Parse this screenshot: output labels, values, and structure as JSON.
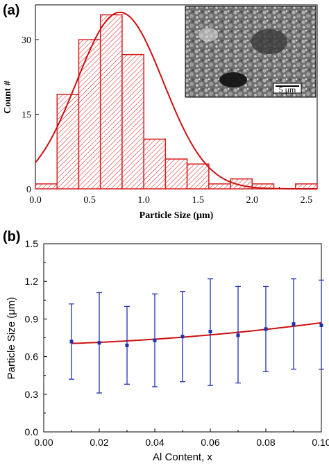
{
  "chart_data": [
    {
      "panel": "(a)",
      "type": "bar",
      "xlabel": "Particle Size (μm)",
      "ylabel": "Count #",
      "xlim": [
        0,
        2.6
      ],
      "ylim": [
        0,
        37
      ],
      "xticks": [
        "0.0",
        "0.5",
        "1.0",
        "1.5",
        "2.0",
        "2.5"
      ],
      "yticks": [
        "0",
        "15",
        "30"
      ],
      "bin_width": 0.2,
      "bins": [
        {
          "x0": 0.0,
          "x1": 0.2,
          "count": 1
        },
        {
          "x0": 0.2,
          "x1": 0.4,
          "count": 19
        },
        {
          "x0": 0.4,
          "x1": 0.6,
          "count": 30
        },
        {
          "x0": 0.6,
          "x1": 0.8,
          "count": 35
        },
        {
          "x0": 0.8,
          "x1": 1.0,
          "count": 27
        },
        {
          "x0": 1.0,
          "x1": 1.2,
          "count": 10
        },
        {
          "x0": 1.2,
          "x1": 1.4,
          "count": 6
        },
        {
          "x0": 1.4,
          "x1": 1.6,
          "count": 5
        },
        {
          "x0": 1.6,
          "x1": 1.8,
          "count": 1
        },
        {
          "x0": 1.8,
          "x1": 2.0,
          "count": 2
        },
        {
          "x0": 2.0,
          "x1": 2.2,
          "count": 1
        },
        {
          "x0": 2.2,
          "x1": 2.4,
          "count": 0
        },
        {
          "x0": 2.4,
          "x1": 2.6,
          "count": 1
        }
      ],
      "fit": {
        "type": "gaussian",
        "center": 0.78,
        "sigma": 0.4,
        "amplitude": 35.5
      },
      "inset": {
        "kind": "SEM micrograph",
        "scale_bar": "5 μm"
      },
      "bar_color": "#d62020",
      "fit_color": "#cc1010"
    },
    {
      "panel": "(b)",
      "type": "scatter",
      "xlabel": "Al Content, x",
      "ylabel": "Particle Size (μm)",
      "xlim": [
        0.0,
        0.1
      ],
      "ylim": [
        0.0,
        1.5
      ],
      "xticks": [
        "0.00",
        "0.02",
        "0.04",
        "0.06",
        "0.08",
        "0.10"
      ],
      "yticks": [
        "0.0",
        "0.3",
        "0.6",
        "0.9",
        "1.2",
        "1.5"
      ],
      "points": [
        {
          "x": 0.01,
          "y": 0.72,
          "err_low": 0.42,
          "err_high": 1.02
        },
        {
          "x": 0.02,
          "y": 0.71,
          "err_low": 0.31,
          "err_high": 1.11
        },
        {
          "x": 0.03,
          "y": 0.69,
          "err_low": 0.38,
          "err_high": 1.0
        },
        {
          "x": 0.04,
          "y": 0.73,
          "err_low": 0.36,
          "err_high": 1.1
        },
        {
          "x": 0.05,
          "y": 0.76,
          "err_low": 0.4,
          "err_high": 1.12
        },
        {
          "x": 0.06,
          "y": 0.8,
          "err_low": 0.37,
          "err_high": 1.22
        },
        {
          "x": 0.07,
          "y": 0.77,
          "err_low": 0.39,
          "err_high": 1.16
        },
        {
          "x": 0.08,
          "y": 0.82,
          "err_low": 0.48,
          "err_high": 1.16
        },
        {
          "x": 0.09,
          "y": 0.86,
          "err_low": 0.5,
          "err_high": 1.22
        },
        {
          "x": 0.1,
          "y": 0.85,
          "err_low": 0.5,
          "err_high": 1.21
        }
      ],
      "fit": {
        "type": "quadratic",
        "y_at": [
          [
            0.01,
            0.705
          ],
          [
            0.05,
            0.755
          ],
          [
            0.1,
            0.87
          ]
        ]
      },
      "point_color": "#1f2fb0",
      "fit_color": "#cc1010"
    }
  ]
}
